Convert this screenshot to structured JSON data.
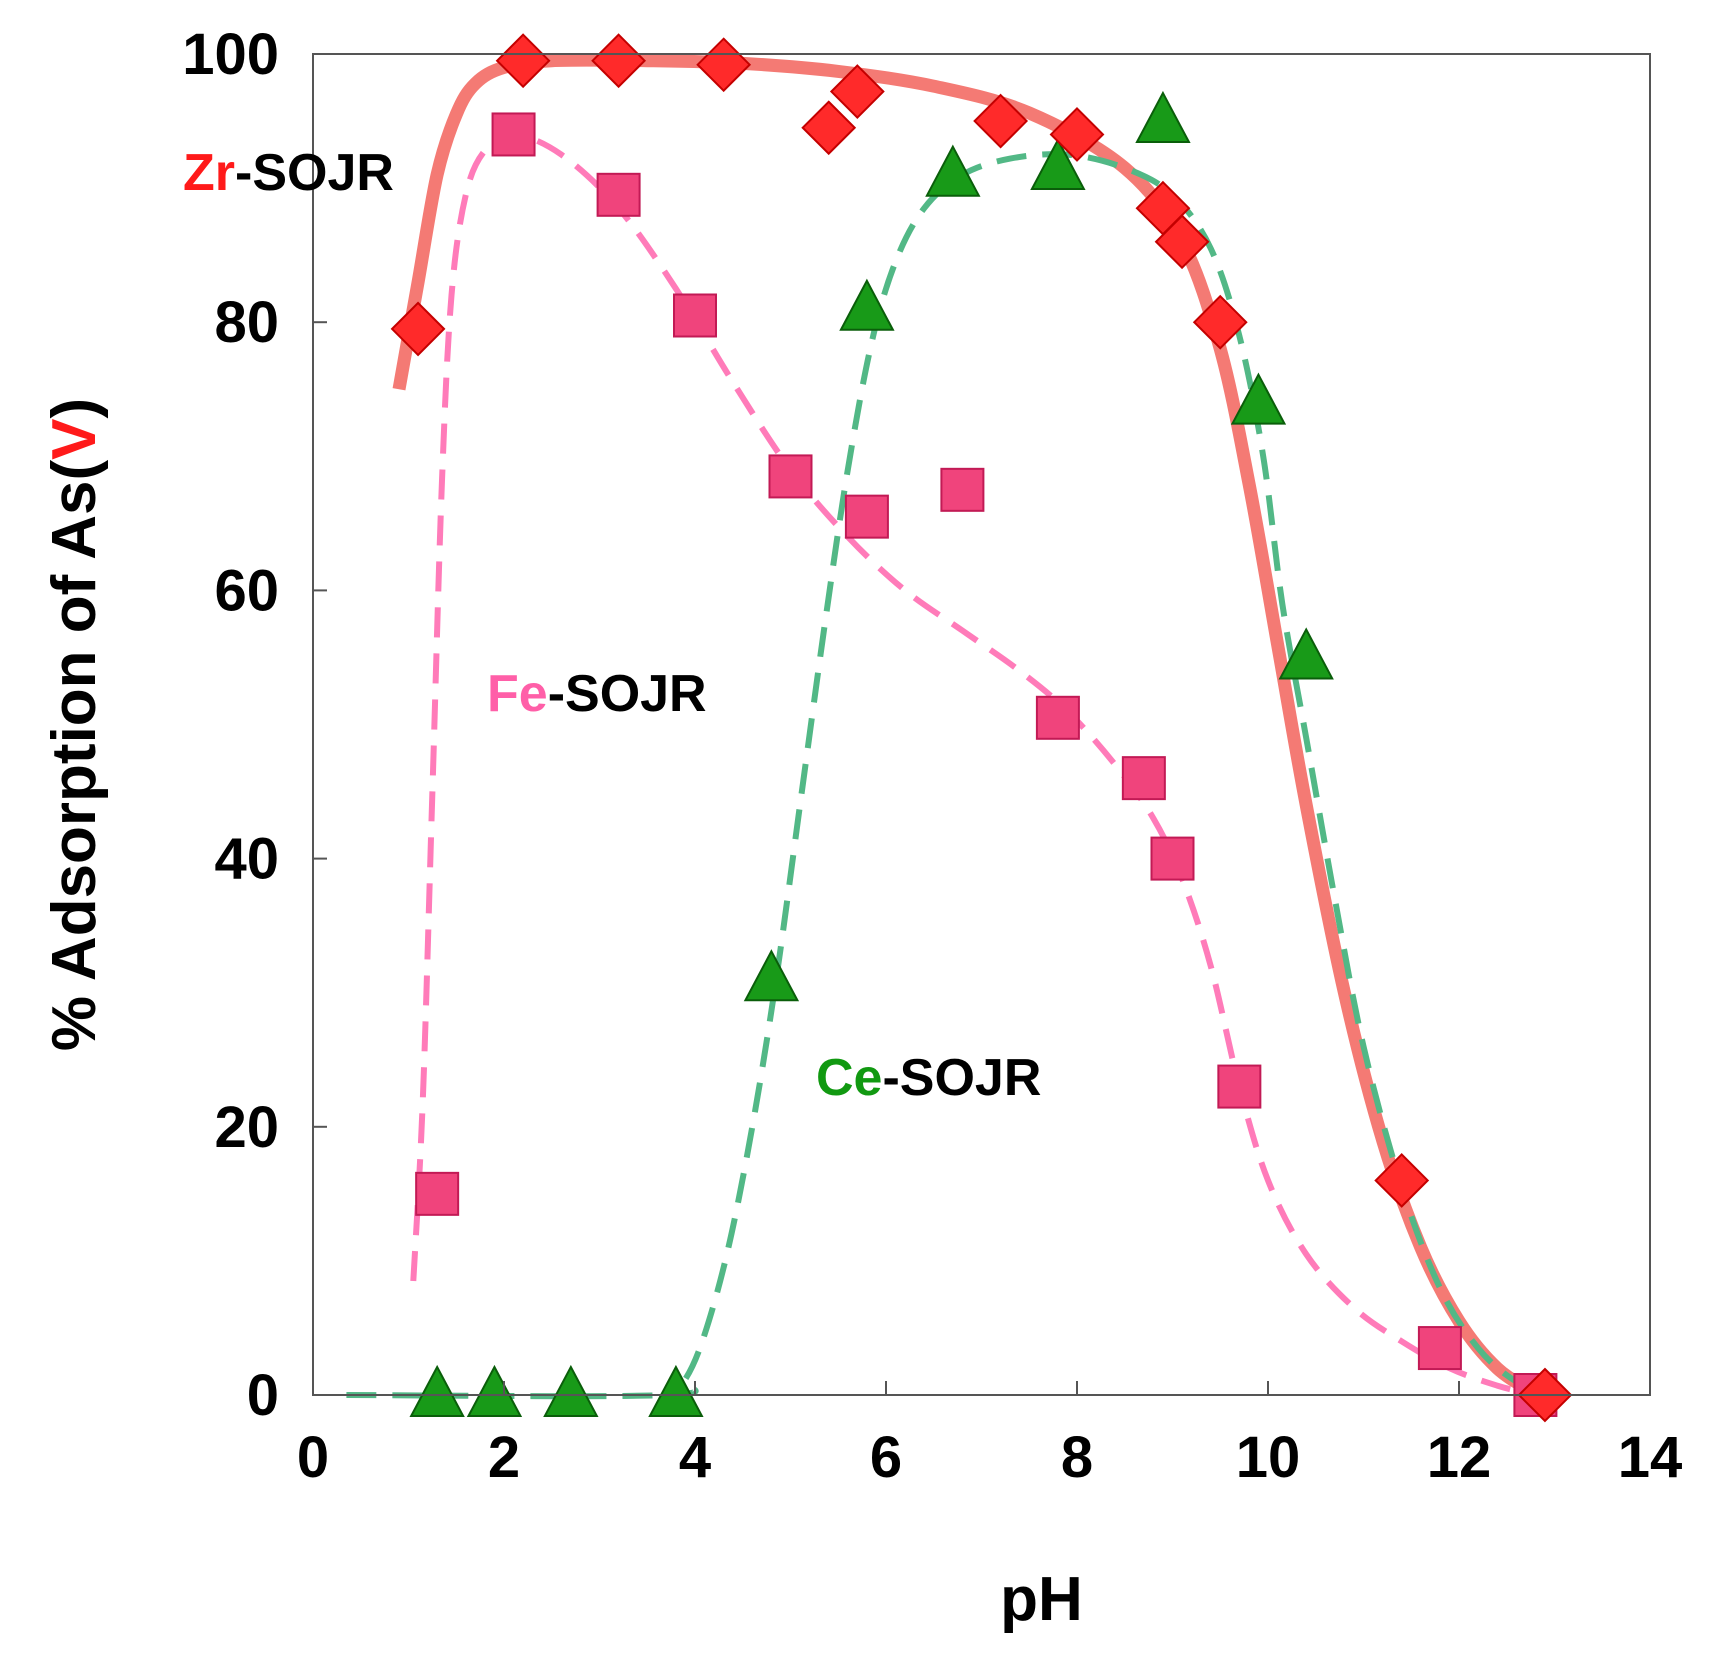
{
  "chart_data": {
    "type": "scatter",
    "xlabel": "pH",
    "ylabel_parts": [
      "% Adsorption of As(",
      "V",
      ")"
    ],
    "xlim": [
      0,
      14
    ],
    "ylim": [
      0,
      100
    ],
    "xticks": [
      "0",
      "2",
      "4",
      "6",
      "8",
      "10",
      "12",
      "14"
    ],
    "yticks": [
      "0",
      "20",
      "40",
      "60",
      "80",
      "100"
    ],
    "grid": false,
    "colors": {
      "accent_red": "#ff1a1a",
      "fe_pink": "#ff5fa8",
      "ce_green": "#119911"
    },
    "series": [
      {
        "label_prefix": "Zr",
        "label_suffix": "-SOJR",
        "marker": "diamond",
        "marker_color": "#ff2a2a",
        "line_color": "#f47a74",
        "line_style": "solid",
        "points": [
          {
            "x": 1.1,
            "y": 79.5
          },
          {
            "x": 2.2,
            "y": 99.5
          },
          {
            "x": 3.2,
            "y": 99.5
          },
          {
            "x": 4.3,
            "y": 99.2
          },
          {
            "x": 5.4,
            "y": 94.5
          },
          {
            "x": 5.7,
            "y": 97.2
          },
          {
            "x": 7.2,
            "y": 95.0
          },
          {
            "x": 8.0,
            "y": 94.0
          },
          {
            "x": 8.9,
            "y": 88.5
          },
          {
            "x": 9.1,
            "y": 86.0
          },
          {
            "x": 9.5,
            "y": 80.0
          },
          {
            "x": 11.4,
            "y": 16.0
          },
          {
            "x": 12.9,
            "y": 0.0
          }
        ],
        "fit": [
          {
            "x": 0.9,
            "y": 75
          },
          {
            "x": 1.1,
            "y": 83
          },
          {
            "x": 1.3,
            "y": 91
          },
          {
            "x": 1.5,
            "y": 95.5
          },
          {
            "x": 1.7,
            "y": 97.8
          },
          {
            "x": 2.0,
            "y": 99
          },
          {
            "x": 2.5,
            "y": 99.5
          },
          {
            "x": 3.5,
            "y": 99.5
          },
          {
            "x": 4.5,
            "y": 99.3
          },
          {
            "x": 5.5,
            "y": 98.7
          },
          {
            "x": 6.5,
            "y": 97.6
          },
          {
            "x": 7.5,
            "y": 95.6
          },
          {
            "x": 8.5,
            "y": 91.5
          },
          {
            "x": 9.1,
            "y": 86
          },
          {
            "x": 9.5,
            "y": 78
          },
          {
            "x": 9.8,
            "y": 68
          },
          {
            "x": 10.1,
            "y": 56
          },
          {
            "x": 10.4,
            "y": 44
          },
          {
            "x": 10.8,
            "y": 30
          },
          {
            "x": 11.2,
            "y": 19
          },
          {
            "x": 11.6,
            "y": 11
          },
          {
            "x": 12.0,
            "y": 5.5
          },
          {
            "x": 12.4,
            "y": 2
          },
          {
            "x": 12.8,
            "y": 0.2
          },
          {
            "x": 13.0,
            "y": 0
          }
        ]
      },
      {
        "label_prefix": "Fe",
        "label_suffix": "-SOJR",
        "marker": "square",
        "marker_color": "#f0447c",
        "line_color": "#ff7bb9",
        "line_style": "dashed",
        "points": [
          {
            "x": 1.3,
            "y": 15.0
          },
          {
            "x": 2.1,
            "y": 94.0
          },
          {
            "x": 3.2,
            "y": 89.5
          },
          {
            "x": 4.0,
            "y": 80.5
          },
          {
            "x": 5.0,
            "y": 68.5
          },
          {
            "x": 5.8,
            "y": 65.5
          },
          {
            "x": 6.8,
            "y": 67.5
          },
          {
            "x": 7.8,
            "y": 50.5
          },
          {
            "x": 8.7,
            "y": 46.0
          },
          {
            "x": 9.0,
            "y": 40.0
          },
          {
            "x": 9.7,
            "y": 23.0
          },
          {
            "x": 11.8,
            "y": 3.5
          },
          {
            "x": 12.8,
            "y": 0.0
          }
        ],
        "fit": [
          {
            "x": 1.05,
            "y": 8.5
          },
          {
            "x": 1.15,
            "y": 22
          },
          {
            "x": 1.25,
            "y": 45
          },
          {
            "x": 1.35,
            "y": 68
          },
          {
            "x": 1.45,
            "y": 82
          },
          {
            "x": 1.6,
            "y": 89.5
          },
          {
            "x": 1.8,
            "y": 92.8
          },
          {
            "x": 2.1,
            "y": 94
          },
          {
            "x": 2.6,
            "y": 92.5
          },
          {
            "x": 3.2,
            "y": 88.5
          },
          {
            "x": 3.8,
            "y": 82.5
          },
          {
            "x": 4.4,
            "y": 75.5
          },
          {
            "x": 5.0,
            "y": 69
          },
          {
            "x": 5.6,
            "y": 64
          },
          {
            "x": 6.2,
            "y": 60
          },
          {
            "x": 6.8,
            "y": 57
          },
          {
            "x": 7.4,
            "y": 54
          },
          {
            "x": 7.9,
            "y": 51
          },
          {
            "x": 8.4,
            "y": 47
          },
          {
            "x": 8.8,
            "y": 43
          },
          {
            "x": 9.1,
            "y": 38.5
          },
          {
            "x": 9.4,
            "y": 32
          },
          {
            "x": 9.7,
            "y": 23
          },
          {
            "x": 10.0,
            "y": 16
          },
          {
            "x": 10.4,
            "y": 10.5
          },
          {
            "x": 10.9,
            "y": 6.5
          },
          {
            "x": 11.4,
            "y": 4
          },
          {
            "x": 11.9,
            "y": 2
          },
          {
            "x": 12.4,
            "y": 0.7
          },
          {
            "x": 12.8,
            "y": 0
          }
        ]
      },
      {
        "label_prefix": "Ce",
        "label_suffix": "-SOJR",
        "marker": "triangle",
        "marker_color": "#189a18",
        "line_color": "#52b886",
        "line_style": "dashed",
        "points": [
          {
            "x": 1.3,
            "y": 0.0
          },
          {
            "x": 1.9,
            "y": 0.0
          },
          {
            "x": 2.7,
            "y": 0.0
          },
          {
            "x": 3.8,
            "y": 0.0
          },
          {
            "x": 4.8,
            "y": 31.0
          },
          {
            "x": 5.8,
            "y": 81.0
          },
          {
            "x": 6.7,
            "y": 91.0
          },
          {
            "x": 7.8,
            "y": 91.5
          },
          {
            "x": 8.9,
            "y": 95.0
          },
          {
            "x": 9.9,
            "y": 74.0
          },
          {
            "x": 10.4,
            "y": 55.0
          }
        ],
        "fit": [
          {
            "x": 0.35,
            "y": 0
          },
          {
            "x": 3.7,
            "y": 0
          },
          {
            "x": 3.9,
            "y": 1.2
          },
          {
            "x": 4.1,
            "y": 4.5
          },
          {
            "x": 4.35,
            "y": 11
          },
          {
            "x": 4.6,
            "y": 20
          },
          {
            "x": 4.85,
            "y": 31
          },
          {
            "x": 5.1,
            "y": 44
          },
          {
            "x": 5.35,
            "y": 57
          },
          {
            "x": 5.6,
            "y": 69
          },
          {
            "x": 5.85,
            "y": 78.5
          },
          {
            "x": 6.1,
            "y": 84.5
          },
          {
            "x": 6.4,
            "y": 88.5
          },
          {
            "x": 6.8,
            "y": 91
          },
          {
            "x": 7.3,
            "y": 92.2
          },
          {
            "x": 7.9,
            "y": 92.5
          },
          {
            "x": 8.5,
            "y": 91.5
          },
          {
            "x": 9.0,
            "y": 89.5
          },
          {
            "x": 9.4,
            "y": 85.5
          },
          {
            "x": 9.7,
            "y": 79
          },
          {
            "x": 9.95,
            "y": 70
          },
          {
            "x": 10.15,
            "y": 59
          },
          {
            "x": 10.4,
            "y": 49
          },
          {
            "x": 10.7,
            "y": 37
          },
          {
            "x": 11.0,
            "y": 26
          },
          {
            "x": 11.4,
            "y": 15.5
          },
          {
            "x": 11.8,
            "y": 8
          },
          {
            "x": 12.2,
            "y": 3.5
          },
          {
            "x": 12.6,
            "y": 1
          },
          {
            "x": 13.0,
            "y": 0
          }
        ]
      }
    ]
  }
}
